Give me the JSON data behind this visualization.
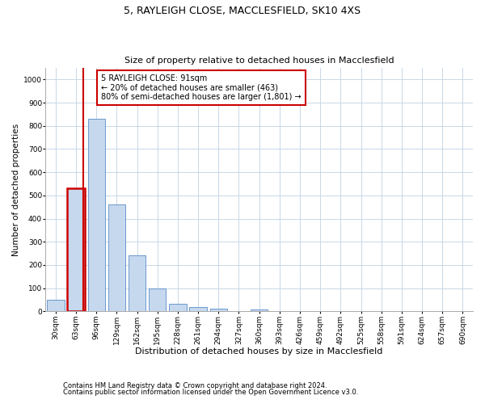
{
  "title1": "5, RAYLEIGH CLOSE, MACCLESFIELD, SK10 4XS",
  "title2": "Size of property relative to detached houses in Macclesfield",
  "xlabel": "Distribution of detached houses by size in Macclesfield",
  "ylabel": "Number of detached properties",
  "categories": [
    "30sqm",
    "63sqm",
    "96sqm",
    "129sqm",
    "162sqm",
    "195sqm",
    "228sqm",
    "261sqm",
    "294sqm",
    "327sqm",
    "360sqm",
    "393sqm",
    "426sqm",
    "459sqm",
    "492sqm",
    "525sqm",
    "558sqm",
    "591sqm",
    "624sqm",
    "657sqm",
    "690sqm"
  ],
  "values": [
    50,
    530,
    830,
    460,
    240,
    97,
    33,
    20,
    10,
    0,
    8,
    0,
    0,
    0,
    0,
    0,
    0,
    0,
    0,
    0,
    0
  ],
  "bar_color": "#c5d8ed",
  "bar_edge_color": "#5b8cc8",
  "highlight_bar_index": 1,
  "annotation_text": "5 RAYLEIGH CLOSE: 91sqm\n← 20% of detached houses are smaller (463)\n80% of semi-detached houses are larger (1,801) →",
  "annotation_box_color": "#ffffff",
  "annotation_box_edge": "#cc0000",
  "red_line_x": 1.35,
  "ylim": [
    0,
    1050
  ],
  "yticks": [
    0,
    100,
    200,
    300,
    400,
    500,
    600,
    700,
    800,
    900,
    1000
  ],
  "footnote1": "Contains HM Land Registry data © Crown copyright and database right 2024.",
  "footnote2": "Contains public sector information licensed under the Open Government Licence v3.0.",
  "bg_color": "#ffffff",
  "grid_color": "#c8d8e8",
  "title1_fontsize": 9,
  "title2_fontsize": 8,
  "xlabel_fontsize": 8,
  "ylabel_fontsize": 7.5,
  "tick_fontsize": 6.5,
  "annot_fontsize": 7
}
